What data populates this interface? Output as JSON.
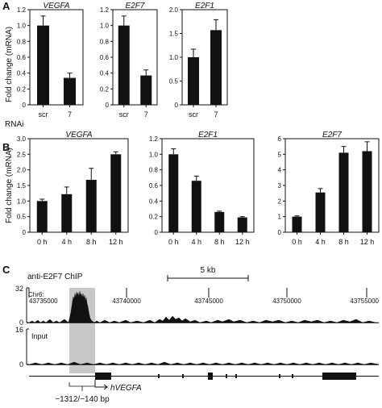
{
  "panel_labels": [
    "A",
    "B",
    "C"
  ],
  "chart_data": [
    {
      "panel": "A",
      "type": "bar",
      "title": "VEGFA",
      "ylabel": "Fold change (mRNA)",
      "row_label": "RNAi",
      "categories": [
        "scr",
        "7"
      ],
      "values": [
        1.0,
        0.34
      ],
      "errors": [
        0.12,
        0.06
      ],
      "ylim": [
        0,
        1.2
      ],
      "yticks": [
        "0",
        "0.2",
        "0.4",
        "0.6",
        "0.8",
        "1.0",
        "1.2"
      ]
    },
    {
      "panel": "A",
      "type": "bar",
      "title": "E2F7",
      "categories": [
        "scr",
        "7"
      ],
      "values": [
        1.0,
        0.37
      ],
      "errors": [
        0.12,
        0.07
      ],
      "ylim": [
        0,
        1.2
      ],
      "yticks": [
        "0",
        "0.2",
        "0.4",
        "0.6",
        "0.8",
        "1.0",
        "1.2"
      ]
    },
    {
      "panel": "A",
      "type": "bar",
      "title": "E2F1",
      "categories": [
        "scr",
        "7"
      ],
      "values": [
        1.0,
        1.57
      ],
      "errors": [
        0.17,
        0.22
      ],
      "ylim": [
        0,
        2.0
      ],
      "yticks": [
        "0",
        "0.5",
        "1.0",
        "1.5",
        "2.0"
      ]
    },
    {
      "panel": "B",
      "type": "bar",
      "title": "VEGFA",
      "ylabel": "Fold change (mRNA)",
      "categories": [
        "0 h",
        "4 h",
        "8 h",
        "12 h"
      ],
      "values": [
        1.0,
        1.22,
        1.68,
        2.5
      ],
      "errors": [
        0.06,
        0.23,
        0.37,
        0.08
      ],
      "ylim": [
        0,
        3.0
      ],
      "yticks": [
        "0",
        "0.5",
        "1.0",
        "1.5",
        "2.0",
        "2.5",
        "3.0"
      ]
    },
    {
      "panel": "B",
      "type": "bar",
      "title": "E2F1",
      "categories": [
        "0 h",
        "4 h",
        "8 h",
        "12 h"
      ],
      "values": [
        1.0,
        0.66,
        0.26,
        0.19
      ],
      "errors": [
        0.07,
        0.06,
        0.01,
        0.01
      ],
      "ylim": [
        0,
        1.2
      ],
      "yticks": [
        "0",
        "0.2",
        "0.4",
        "0.6",
        "0.8",
        "1.0",
        "1.2"
      ]
    },
    {
      "panel": "B",
      "type": "bar",
      "title": "E2F7",
      "categories": [
        "0 h",
        "4 h",
        "8 h",
        "12 h"
      ],
      "values": [
        1.0,
        2.55,
        5.1,
        5.2
      ],
      "errors": [
        0.05,
        0.25,
        0.4,
        0.6
      ],
      "ylim": [
        0,
        6
      ],
      "yticks": [
        "0",
        "1",
        "2",
        "3",
        "4",
        "5",
        "6"
      ]
    }
  ],
  "chip": {
    "title": "anti-E2F7 ChIP",
    "chrom_label": "Chr6:",
    "scale_label": "5 kb",
    "coords": [
      "43735000",
      "43740000",
      "43745000",
      "43750000",
      "43755000"
    ],
    "track1_ymax": "32",
    "track1_ymin": "0",
    "track2_ymax": "16",
    "track2_ymin": "0",
    "track2_label": "Input",
    "gene_label": "hVEGFA",
    "region_label": "−1312/−140 bp",
    "highlight_color": "#c8c8c8"
  }
}
